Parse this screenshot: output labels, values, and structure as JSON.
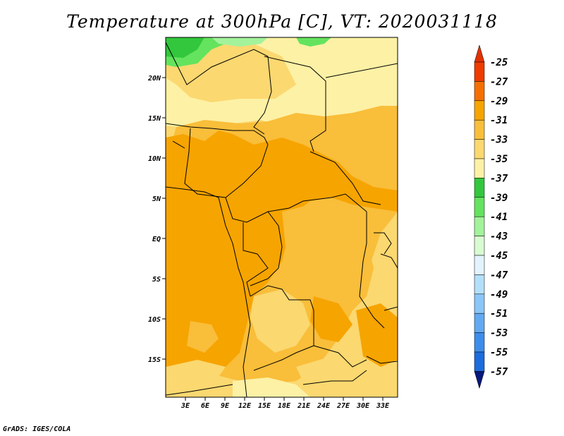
{
  "title": "Temperature at 300hPa [C], VT: 2020031118",
  "footer": "GrADS: IGES/COLA",
  "map": {
    "lat_labels": [
      "20N",
      "15N",
      "10N",
      "5N",
      "EQ",
      "5S",
      "10S",
      "15S"
    ],
    "lat_values": [
      20,
      15,
      10,
      5,
      0,
      -5,
      -10,
      -15
    ],
    "lon_labels": [
      "3E",
      "6E",
      "9E",
      "12E",
      "15E",
      "18E",
      "21E",
      "24E",
      "27E",
      "30E",
      "33E"
    ],
    "lon_values": [
      3,
      6,
      9,
      12,
      15,
      18,
      21,
      24,
      27,
      30,
      33
    ]
  },
  "colorbar": {
    "levels": [
      "-25",
      "-27",
      "-29",
      "-31",
      "-33",
      "-35",
      "-37",
      "-39",
      "-41",
      "-43",
      "-45",
      "-47",
      "-49",
      "-51",
      "-53",
      "-55",
      "-57"
    ],
    "colors": [
      "#ef3a00",
      "#f56f00",
      "#f6a400",
      "#f9be3a",
      "#fbd870",
      "#fdf1a5",
      "#33c73d",
      "#64e35e",
      "#a3f39b",
      "#d8fbd1",
      "#e2f3ff",
      "#b4dffb",
      "#8bc6f8",
      "#61aaf2",
      "#3c8deb",
      "#1c6cdd",
      "#0e48bb"
    ],
    "top_color": "#e13100",
    "bottom_color": "#07187a"
  }
}
